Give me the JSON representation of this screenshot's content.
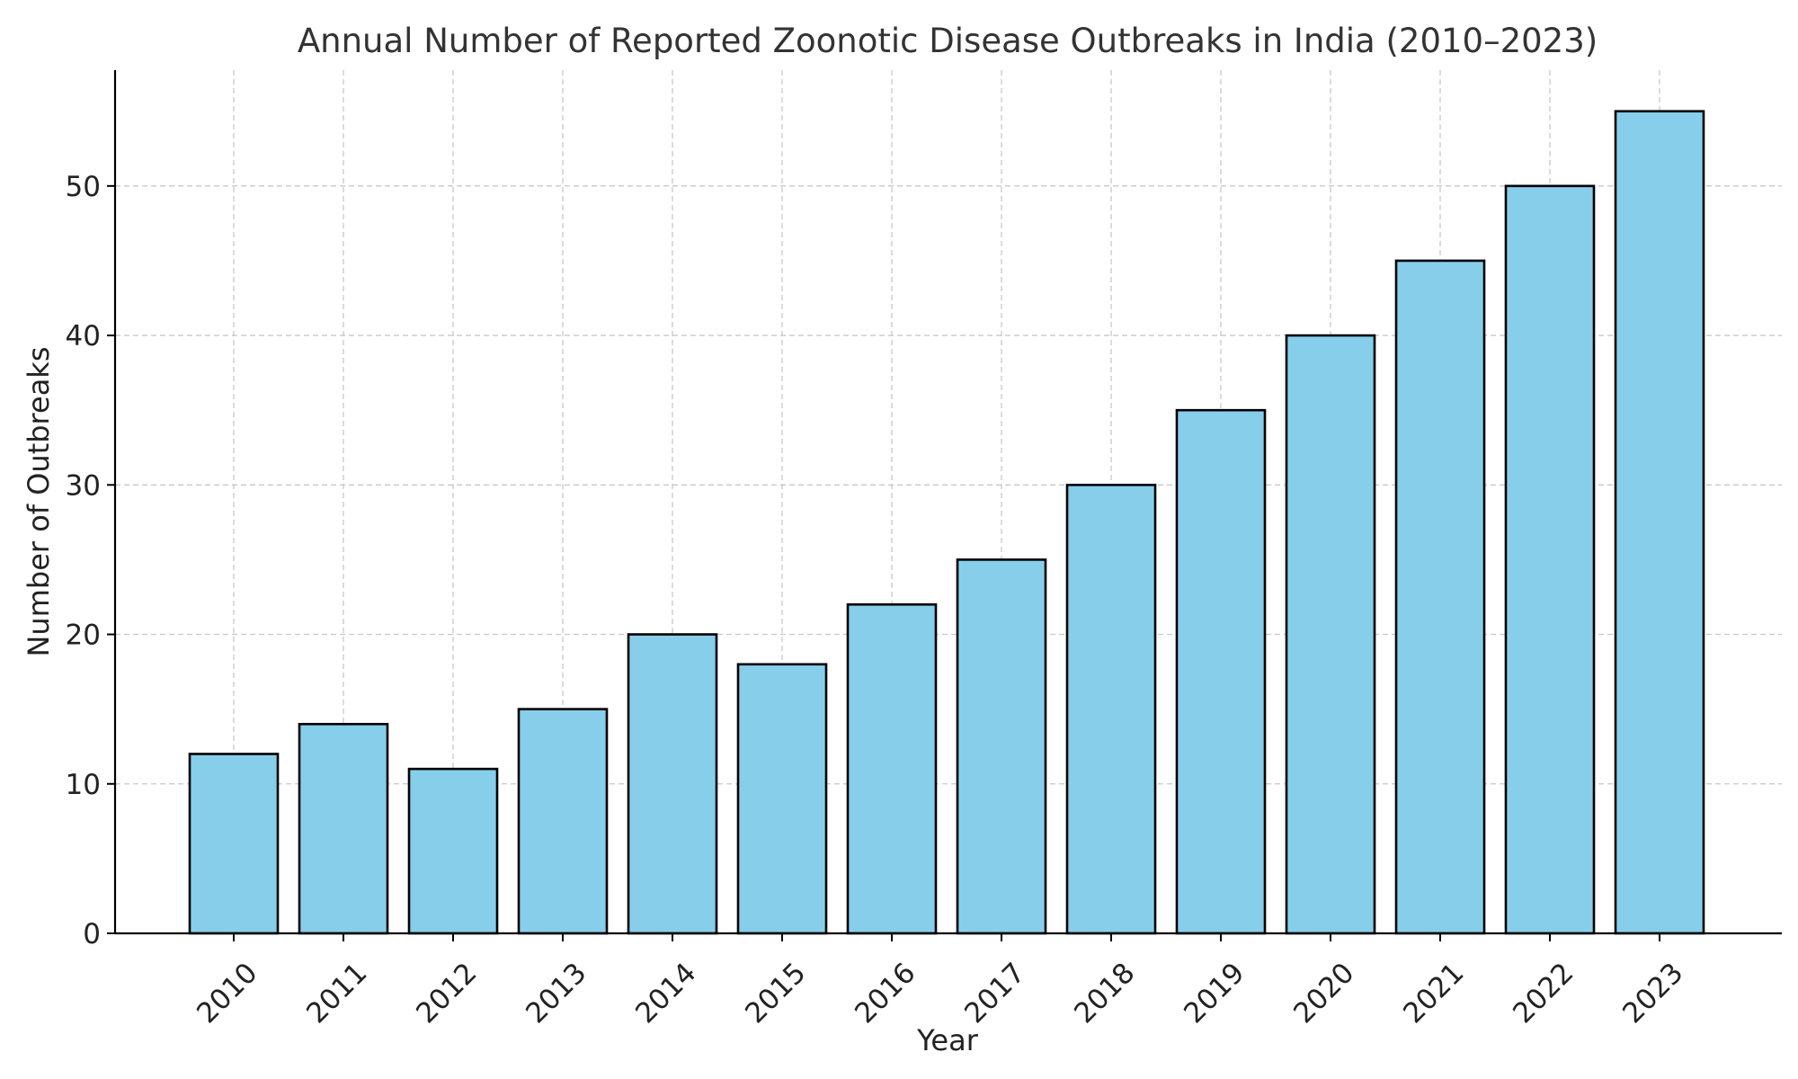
{
  "chart_data": {
    "type": "bar",
    "title": "Annual Number of Reported Zoonotic Disease Outbreaks in India (2010–2023)",
    "xlabel": "Year",
    "ylabel": "Number of Outbreaks",
    "categories": [
      "2010",
      "2011",
      "2012",
      "2013",
      "2014",
      "2015",
      "2016",
      "2017",
      "2018",
      "2019",
      "2020",
      "2021",
      "2022",
      "2023"
    ],
    "values": [
      12,
      14,
      11,
      15,
      20,
      18,
      22,
      25,
      30,
      35,
      40,
      45,
      50,
      55
    ],
    "ylim": [
      0,
      57.75
    ],
    "yticks": [
      0,
      10,
      20,
      30,
      40,
      50
    ],
    "grid": true,
    "bar_color": "#87ceeb",
    "edge_color": "#000000"
  }
}
